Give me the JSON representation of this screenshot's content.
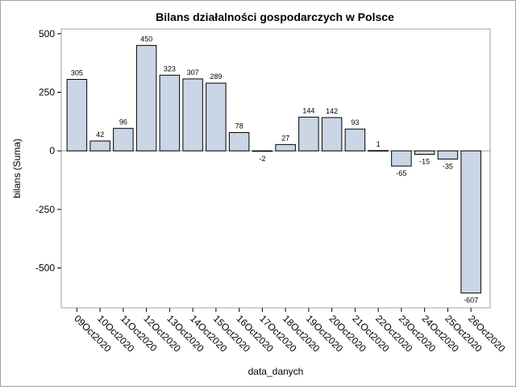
{
  "chart_data": {
    "type": "bar",
    "title": "Bilans działalności gospodarczych w Polsce",
    "xlabel": "data_danych",
    "ylabel": "bilans (Suma)",
    "categories": [
      "09Oct2020",
      "10Oct2020",
      "11Oct2020",
      "12Oct2020",
      "13Oct2020",
      "14Oct2020",
      "15Oct2020",
      "16Oct2020",
      "17Oct2020",
      "18Oct2020",
      "19Oct2020",
      "20Oct2020",
      "21Oct2020",
      "22Oct2020",
      "23Oct2020",
      "24Oct2020",
      "25Oct2020",
      "26Oct2020"
    ],
    "values": [
      305,
      42,
      96,
      450,
      323,
      307,
      289,
      78,
      -2,
      27,
      144,
      142,
      93,
      1,
      -65,
      -15,
      -35,
      -607
    ],
    "ylim": [
      -670,
      520
    ],
    "yticks": [
      500,
      250,
      0,
      -250,
      -500
    ],
    "grid": false,
    "zero_line": true,
    "bar_color": "#cad5e5",
    "bar_edge_color": "#000000",
    "frame_color": "#a0a0a0"
  }
}
